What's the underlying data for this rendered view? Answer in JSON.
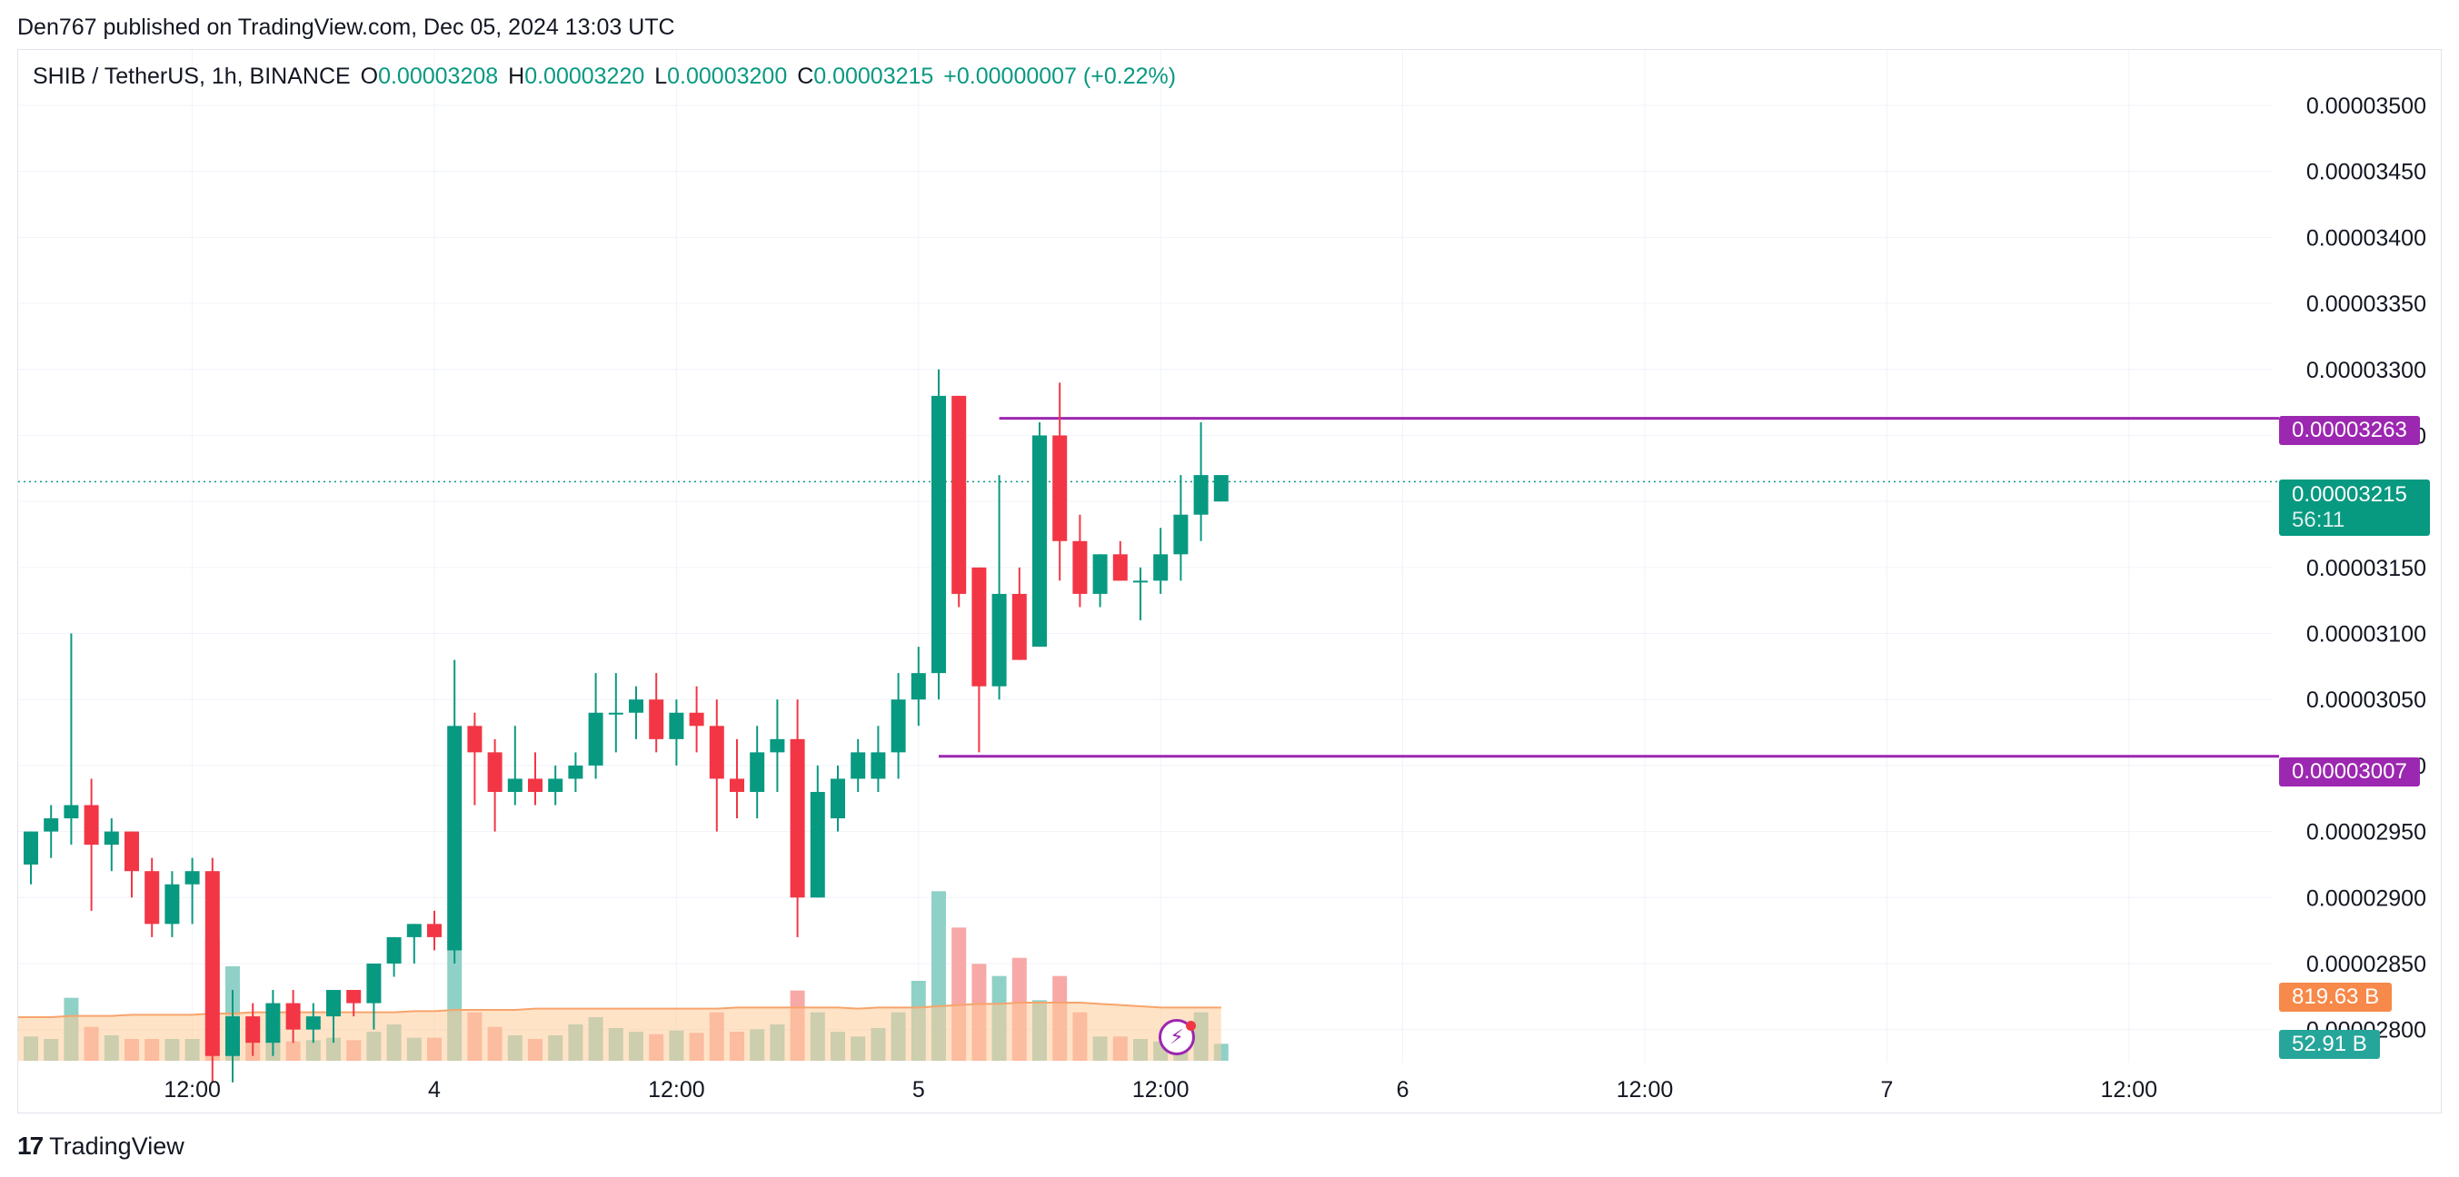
{
  "attribution": "Den767 published on TradingView.com, Dec 05, 2024 13:03 UTC",
  "legend": {
    "symbol": "SHIB / TetherUS, 1h, BINANCE",
    "o_label": "O",
    "o_value": "0.00003208",
    "h_label": "H",
    "h_value": "0.00003220",
    "l_label": "L",
    "l_value": "0.00003200",
    "c_label": "C",
    "c_value": "0.00003215",
    "change": "+0.00000007 (+0.22%)"
  },
  "footer": {
    "brand": "TradingView",
    "logo_icon": "tradingview-logo-icon"
  },
  "badges": {
    "resistance": "0.00003263",
    "support": "0.00003007",
    "last_price": "0.00003215",
    "countdown": "56:11",
    "volume_ma": "819.63 B",
    "volume": "52.91 B"
  },
  "live_icon": "lightning-icon",
  "colors": {
    "up": "#089981",
    "down": "#f23645",
    "vol_up": "#8fd1c7",
    "vol_down": "#f7a9a7",
    "level_line": "#9c27b0",
    "vol_ma_fill": "#ffcc99",
    "vol_ma_line": "#f7a46b",
    "badge_ma": "#f7894a",
    "badge_vol": "#26a69a",
    "grid": "#f0f3fa"
  },
  "chart_data": {
    "type": "candlestick",
    "ylim": [
      2.775e-05,
      3.542e-05
    ],
    "y_ticks": [
      "0.00003500",
      "0.00003450",
      "0.00003400",
      "0.00003350",
      "0.00003300",
      "0.00003250",
      "0.00003200",
      "0.00003150",
      "0.00003100",
      "0.00003050",
      "0.00003000",
      "0.00002950",
      "0.00002900",
      "0.00002850",
      "0.00002800"
    ],
    "y_tick_values": [
      3.5e-05,
      3.45e-05,
      3.4e-05,
      3.35e-05,
      3.3e-05,
      3.25e-05,
      3.2e-05,
      3.15e-05,
      3.1e-05,
      3.05e-05,
      3e-05,
      2.95e-05,
      2.9e-05,
      2.85e-05,
      2.8e-05
    ],
    "x_ticks": [
      "12:00",
      "4",
      "12:00",
      "5",
      "12:00",
      "6",
      "12:00",
      "7",
      "12:00"
    ],
    "x_tick_index": [
      8,
      20,
      32,
      44,
      56,
      68,
      80,
      92,
      104
    ],
    "last_price": 3.215e-05,
    "levels": [
      {
        "value": 3.263e-05,
        "start_index": 48
      },
      {
        "value": 3.007e-05,
        "start_index": 45
      }
    ],
    "candles": [
      [
        2.925e-05,
        2.95e-05,
        2.91e-05,
        2.95e-05
      ],
      [
        2.95e-05,
        2.97e-05,
        2.93e-05,
        2.96e-05
      ],
      [
        2.96e-05,
        3.1e-05,
        2.94e-05,
        2.97e-05
      ],
      [
        2.97e-05,
        2.99e-05,
        2.89e-05,
        2.94e-05
      ],
      [
        2.94e-05,
        2.96e-05,
        2.92e-05,
        2.95e-05
      ],
      [
        2.95e-05,
        2.95e-05,
        2.9e-05,
        2.92e-05
      ],
      [
        2.92e-05,
        2.93e-05,
        2.87e-05,
        2.88e-05
      ],
      [
        2.88e-05,
        2.92e-05,
        2.87e-05,
        2.91e-05
      ],
      [
        2.91e-05,
        2.93e-05,
        2.88e-05,
        2.92e-05
      ],
      [
        2.92e-05,
        2.93e-05,
        2.76e-05,
        2.78e-05
      ],
      [
        2.78e-05,
        2.83e-05,
        2.76e-05,
        2.81e-05
      ],
      [
        2.81e-05,
        2.82e-05,
        2.78e-05,
        2.79e-05
      ],
      [
        2.79e-05,
        2.83e-05,
        2.78e-05,
        2.82e-05
      ],
      [
        2.82e-05,
        2.83e-05,
        2.79e-05,
        2.8e-05
      ],
      [
        2.8e-05,
        2.82e-05,
        2.79e-05,
        2.81e-05
      ],
      [
        2.81e-05,
        2.83e-05,
        2.79e-05,
        2.83e-05
      ],
      [
        2.83e-05,
        2.83e-05,
        2.81e-05,
        2.82e-05
      ],
      [
        2.82e-05,
        2.85e-05,
        2.8e-05,
        2.85e-05
      ],
      [
        2.85e-05,
        2.87e-05,
        2.84e-05,
        2.87e-05
      ],
      [
        2.87e-05,
        2.88e-05,
        2.85e-05,
        2.88e-05
      ],
      [
        2.88e-05,
        2.89e-05,
        2.86e-05,
        2.87e-05
      ],
      [
        2.86e-05,
        3.08e-05,
        2.85e-05,
        3.03e-05
      ],
      [
        3.03e-05,
        3.04e-05,
        2.97e-05,
        3.01e-05
      ],
      [
        3.01e-05,
        3.02e-05,
        2.95e-05,
        2.98e-05
      ],
      [
        2.98e-05,
        3.03e-05,
        2.97e-05,
        2.99e-05
      ],
      [
        2.99e-05,
        3.01e-05,
        2.97e-05,
        2.98e-05
      ],
      [
        2.98e-05,
        3e-05,
        2.97e-05,
        2.99e-05
      ],
      [
        2.99e-05,
        3.01e-05,
        2.98e-05,
        3e-05
      ],
      [
        3e-05,
        3.07e-05,
        2.99e-05,
        3.04e-05
      ],
      [
        3.04e-05,
        3.07e-05,
        3.01e-05,
        3.04e-05
      ],
      [
        3.04e-05,
        3.06e-05,
        3.02e-05,
        3.05e-05
      ],
      [
        3.05e-05,
        3.07e-05,
        3.01e-05,
        3.02e-05
      ],
      [
        3.02e-05,
        3.05e-05,
        3e-05,
        3.04e-05
      ],
      [
        3.04e-05,
        3.06e-05,
        3.01e-05,
        3.03e-05
      ],
      [
        3.03e-05,
        3.05e-05,
        2.95e-05,
        2.99e-05
      ],
      [
        2.99e-05,
        3.02e-05,
        2.96e-05,
        2.98e-05
      ],
      [
        2.98e-05,
        3.03e-05,
        2.96e-05,
        3.01e-05
      ],
      [
        3.01e-05,
        3.05e-05,
        2.98e-05,
        3.02e-05
      ],
      [
        3.02e-05,
        3.05e-05,
        2.87e-05,
        2.9e-05
      ],
      [
        2.9e-05,
        3e-05,
        2.9e-05,
        2.98e-05
      ],
      [
        2.96e-05,
        3e-05,
        2.95e-05,
        2.99e-05
      ],
      [
        2.99e-05,
        3.02e-05,
        2.98e-05,
        3.01e-05
      ],
      [
        2.99e-05,
        3.03e-05,
        2.98e-05,
        3.01e-05
      ],
      [
        3.01e-05,
        3.07e-05,
        2.99e-05,
        3.05e-05
      ],
      [
        3.05e-05,
        3.09e-05,
        3.03e-05,
        3.07e-05
      ],
      [
        3.07e-05,
        3.3e-05,
        3.05e-05,
        3.28e-05
      ],
      [
        3.28e-05,
        3.28e-05,
        3.12e-05,
        3.13e-05
      ],
      [
        3.15e-05,
        3.15e-05,
        3.01e-05,
        3.06e-05
      ],
      [
        3.06e-05,
        3.22e-05,
        3.05e-05,
        3.13e-05
      ],
      [
        3.13e-05,
        3.15e-05,
        3.08e-05,
        3.08e-05
      ],
      [
        3.09e-05,
        3.26e-05,
        3.09e-05,
        3.25e-05
      ],
      [
        3.25e-05,
        3.29e-05,
        3.14e-05,
        3.17e-05
      ],
      [
        3.17e-05,
        3.19e-05,
        3.12e-05,
        3.13e-05
      ],
      [
        3.13e-05,
        3.16e-05,
        3.12e-05,
        3.16e-05
      ],
      [
        3.16e-05,
        3.17e-05,
        3.14e-05,
        3.14e-05
      ],
      [
        3.14e-05,
        3.15e-05,
        3.11e-05,
        3.14e-05
      ],
      [
        3.14e-05,
        3.18e-05,
        3.13e-05,
        3.16e-05
      ],
      [
        3.16e-05,
        3.22e-05,
        3.14e-05,
        3.19e-05
      ],
      [
        3.19e-05,
        3.26e-05,
        3.17e-05,
        3.22e-05
      ],
      [
        3.2e-05,
        3.22e-05,
        3.2e-05,
        3.22e-05
      ]
    ],
    "volumes": [
      20,
      18,
      52,
      28,
      21,
      18,
      18,
      18,
      18,
      100,
      78,
      16,
      17,
      16,
      17,
      19,
      17,
      24,
      30,
      19,
      19,
      100,
      40,
      28,
      21,
      18,
      21,
      30,
      36,
      27,
      24,
      22,
      25,
      23,
      40,
      24,
      26,
      30,
      58,
      40,
      24,
      20,
      27,
      40,
      66,
      140,
      110,
      80,
      70,
      85,
      50,
      70,
      40,
      20,
      20,
      18,
      16,
      16,
      40,
      14
    ],
    "volume_ma": [
      36,
      36,
      37,
      37,
      37,
      38,
      38,
      38,
      38,
      39,
      39,
      40,
      40,
      40,
      40,
      40,
      40,
      40,
      40,
      41,
      41,
      42,
      42,
      42,
      42,
      43,
      43,
      43,
      43,
      43,
      43,
      43,
      43,
      43,
      43,
      44,
      44,
      44,
      44,
      44,
      44,
      43,
      44,
      44,
      44,
      45,
      46,
      47,
      47,
      48,
      48,
      48,
      48,
      47,
      46,
      45,
      44,
      44,
      44,
      44
    ],
    "volume_ymax": 165
  }
}
